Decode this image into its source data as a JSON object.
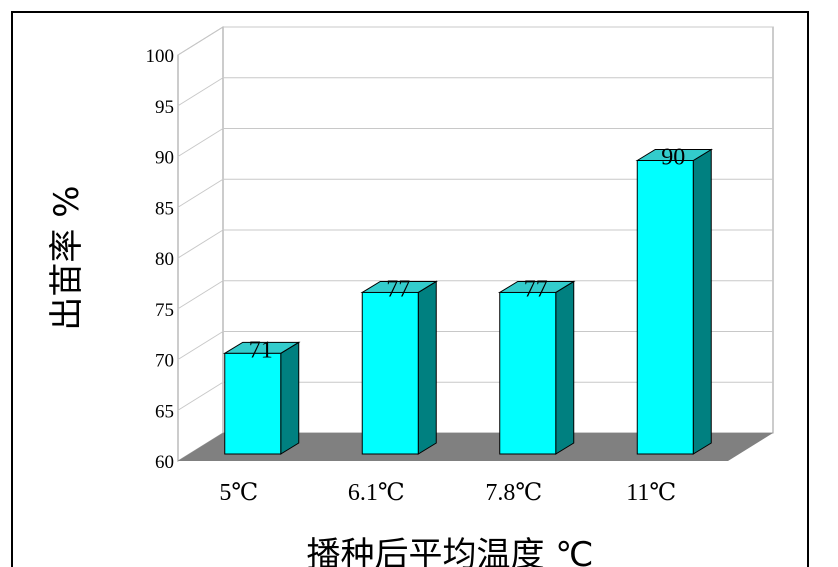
{
  "chart_data": {
    "type": "bar",
    "categories": [
      "5℃",
      "6.1℃",
      "7.8℃",
      "11℃"
    ],
    "values": [
      71,
      77,
      77,
      90
    ],
    "data_labels": [
      "71",
      "77",
      "77",
      "90"
    ],
    "xlabel": "播种后平均温度 ℃",
    "ylabel": "出苗率 %",
    "ylim": [
      60,
      100
    ],
    "yticks": [
      60,
      65,
      70,
      75,
      80,
      85,
      90,
      95,
      100
    ],
    "grid": true,
    "legend": "none",
    "style": "3d",
    "colors": {
      "bar_front": "#00ffff",
      "bar_top": "#33cccc",
      "bar_side": "#008080",
      "floor": "#808080",
      "wall": "#ffffff",
      "grid": "#c8c8c8"
    }
  }
}
